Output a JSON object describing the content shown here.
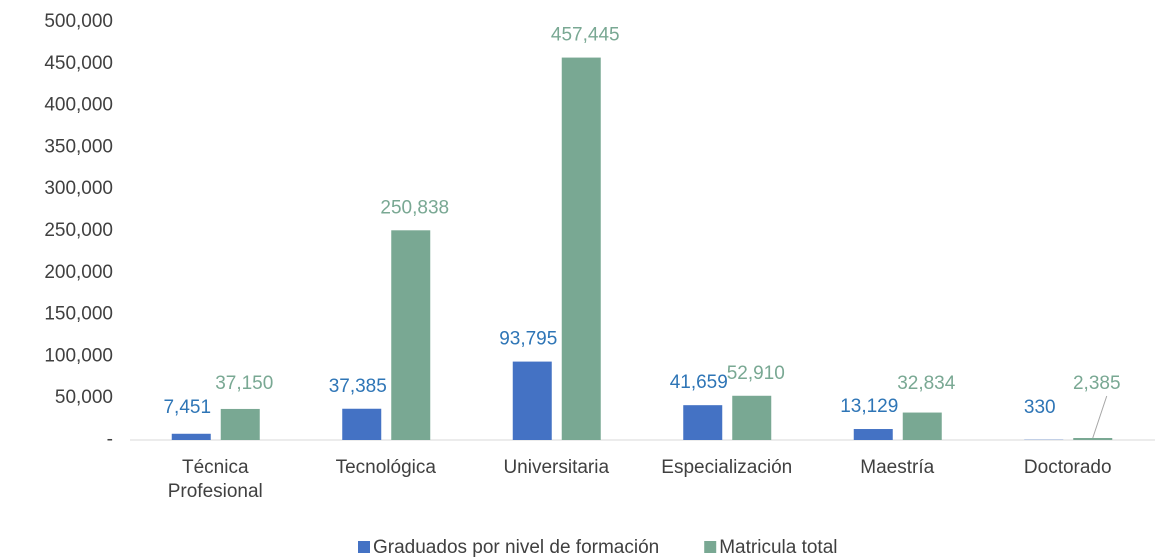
{
  "chart_data": {
    "type": "bar",
    "categories": [
      "Técnica Profesional",
      "Tecnológica",
      "Universitaria",
      "Especialización",
      "Maestría",
      "Doctorado"
    ],
    "series": [
      {
        "name": "Graduados por nivel de formación",
        "color": "#4472c4",
        "label_color": "#2e75b6",
        "values": [
          7451,
          37385,
          93795,
          41659,
          13129,
          330
        ],
        "value_labels": [
          "7,451",
          "37,385",
          "93,795",
          "41,659",
          "13,129",
          "330"
        ]
      },
      {
        "name": "Matricula total",
        "color": "#79a893",
        "label_color": "#79a893",
        "values": [
          37150,
          250838,
          457445,
          52910,
          32834,
          2385
        ],
        "value_labels": [
          "37,150",
          "250,838",
          "457,445",
          "52,910",
          "32,834",
          "2,385"
        ]
      }
    ],
    "ylim": [
      0,
      500000
    ],
    "yticks": [
      {
        "value": 0,
        "label": "-"
      },
      {
        "value": 50000,
        "label": "50,000"
      },
      {
        "value": 100000,
        "label": "100,000"
      },
      {
        "value": 150000,
        "label": "150,000"
      },
      {
        "value": 200000,
        "label": "200,000"
      },
      {
        "value": 250000,
        "label": "250,000"
      },
      {
        "value": 300000,
        "label": "300,000"
      },
      {
        "value": 350000,
        "label": "350,000"
      },
      {
        "value": 400000,
        "label": "400,000"
      },
      {
        "value": 450000,
        "label": "450,000"
      },
      {
        "value": {
          "value": 500000,
          "label": "500,000"
        },
        "label": "500,000"
      }
    ],
    "grid": false,
    "legend": "bottom"
  }
}
